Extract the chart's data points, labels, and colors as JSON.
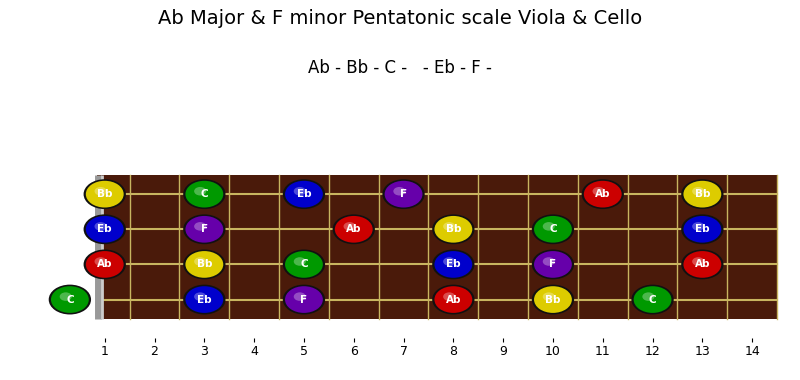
{
  "title": "Ab Major & F minor Pentatonic scale Viola & Cello",
  "subtitle": "Ab - Bb - C -   - Eb - F -",
  "fret_max": 14,
  "num_strings": 4,
  "fretboard_color": "#4a1a0a",
  "fret_line_color": "#c8b560",
  "nut_color": "#999999",
  "note_colors": {
    "Ab": "#cc0000",
    "Bb": "#ddcc00",
    "C": "#009900",
    "Eb": "#0000cc",
    "F": "#6600aa"
  },
  "notes": [
    {
      "string": 0,
      "fret": 1,
      "note": "Bb"
    },
    {
      "string": 0,
      "fret": 3,
      "note": "C"
    },
    {
      "string": 0,
      "fret": 5,
      "note": "Eb"
    },
    {
      "string": 0,
      "fret": 7,
      "note": "F"
    },
    {
      "string": 0,
      "fret": 11,
      "note": "Ab"
    },
    {
      "string": 0,
      "fret": 13,
      "note": "Bb"
    },
    {
      "string": 1,
      "fret": 1,
      "note": "Eb"
    },
    {
      "string": 1,
      "fret": 3,
      "note": "F"
    },
    {
      "string": 1,
      "fret": 6,
      "note": "Ab"
    },
    {
      "string": 1,
      "fret": 8,
      "note": "Bb"
    },
    {
      "string": 1,
      "fret": 10,
      "note": "C"
    },
    {
      "string": 1,
      "fret": 13,
      "note": "Eb"
    },
    {
      "string": 2,
      "fret": 1,
      "note": "Ab"
    },
    {
      "string": 2,
      "fret": 3,
      "note": "Bb"
    },
    {
      "string": 2,
      "fret": 5,
      "note": "C"
    },
    {
      "string": 2,
      "fret": 8,
      "note": "Eb"
    },
    {
      "string": 2,
      "fret": 10,
      "note": "F"
    },
    {
      "string": 2,
      "fret": 13,
      "note": "Ab"
    },
    {
      "string": 3,
      "fret": 0,
      "note": "C"
    },
    {
      "string": 3,
      "fret": 3,
      "note": "Eb"
    },
    {
      "string": 3,
      "fret": 5,
      "note": "F"
    },
    {
      "string": 3,
      "fret": 8,
      "note": "Ab"
    },
    {
      "string": 3,
      "fret": 10,
      "note": "Bb"
    },
    {
      "string": 3,
      "fret": 12,
      "note": "C"
    }
  ],
  "tick_labels": [
    "1",
    "2",
    "3",
    "4",
    "5",
    "6",
    "7",
    "8",
    "9",
    "10",
    "11",
    "12",
    "13",
    "14"
  ],
  "tick_positions": [
    1,
    2,
    3,
    4,
    5,
    6,
    7,
    8,
    9,
    10,
    11,
    12,
    13,
    14
  ]
}
